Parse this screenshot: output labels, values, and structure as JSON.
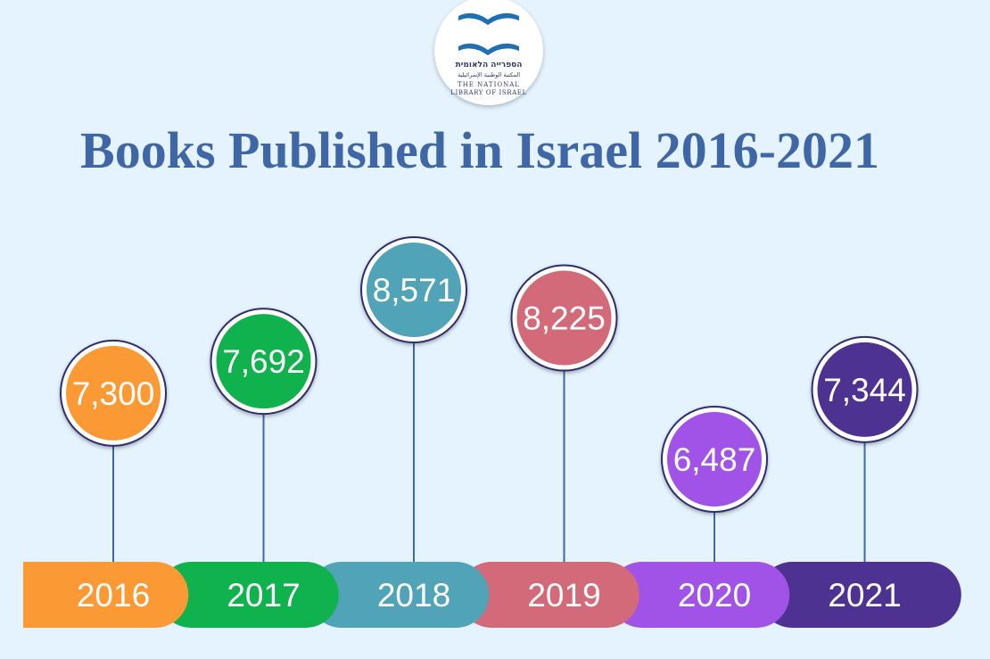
{
  "logo": {
    "hebrew": "הספרייה הלאומית",
    "arabic": "المكتبة الوطنية الإسرائيلية",
    "english_line1": "THE NATIONAL",
    "english_line2": "LIBRARY OF ISRAEL",
    "accent_color": "#1f6fb2"
  },
  "background_color": "#e4f3fd",
  "title_color": "#3f67a5",
  "chart_data": {
    "type": "bar",
    "title": "Books Published in Israel 2016-2021",
    "xlabel": "",
    "ylabel": "",
    "categories": [
      "2016",
      "2017",
      "2018",
      "2019",
      "2020",
      "2021"
    ],
    "values": [
      7300,
      7692,
      8571,
      8225,
      6487,
      7344
    ],
    "value_labels": [
      "7,300",
      "7,692",
      "8,571",
      "8,225",
      "6,487",
      "7,344"
    ],
    "colors": [
      "#fb9a34",
      "#0fb24d",
      "#51a3b7",
      "#d36a79",
      "#a153e7",
      "#4d3291"
    ],
    "grid": false,
    "legend": "none"
  }
}
